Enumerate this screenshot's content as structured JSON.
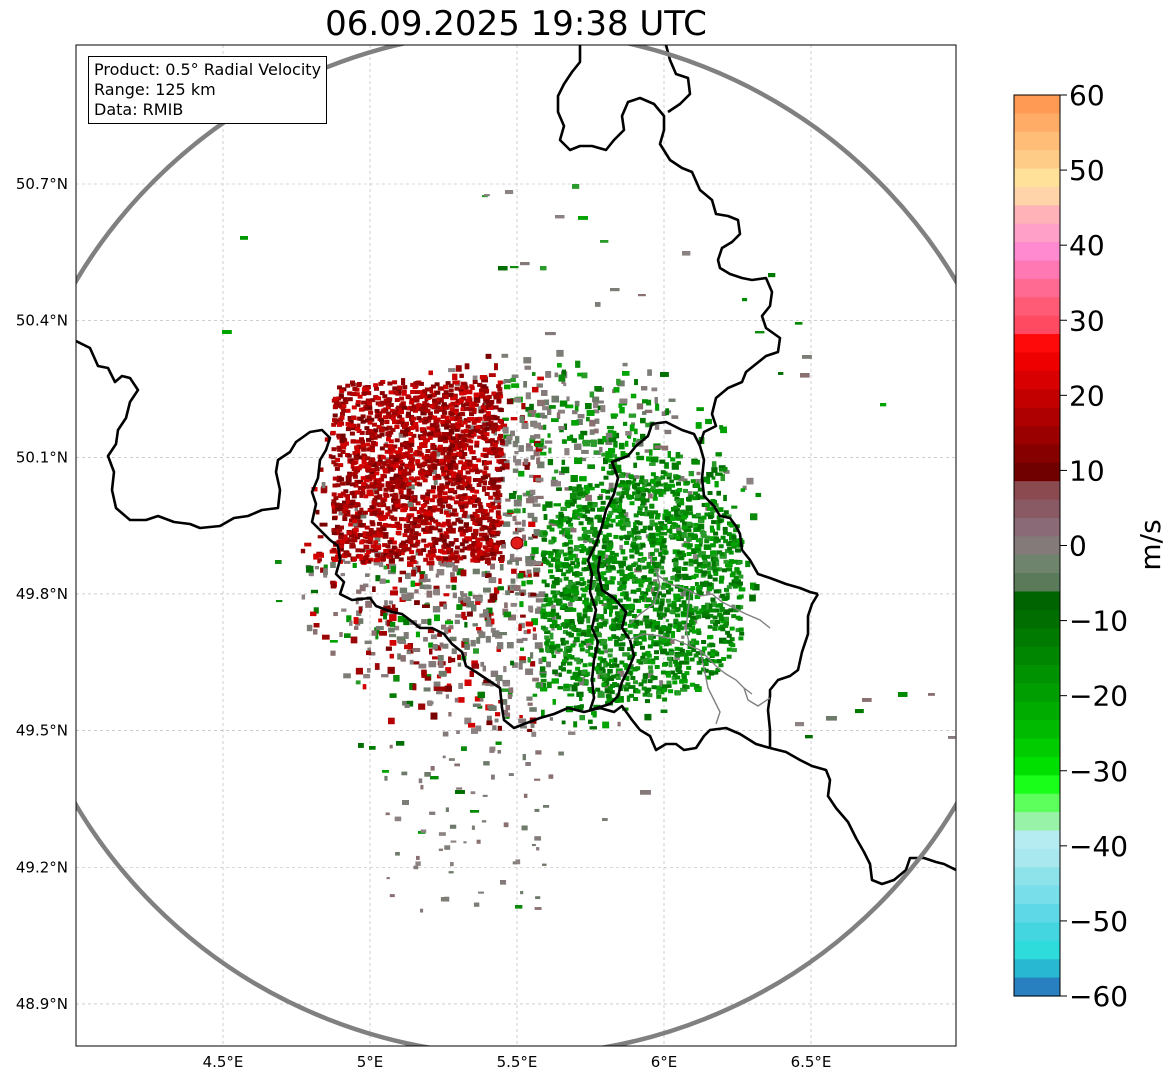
{
  "title": "06.09.2025 19:38 UTC",
  "info": {
    "product": "Product: 0.5° Radial Velocity",
    "range": "Range: 125 km",
    "data_source": "Data: RMIB"
  },
  "map": {
    "lon_ticks": [
      {
        "value": 4.5,
        "label": "4.5°E"
      },
      {
        "value": 5.0,
        "label": "5°E"
      },
      {
        "value": 5.5,
        "label": "5.5°E"
      },
      {
        "value": 6.0,
        "label": "6°E"
      },
      {
        "value": 6.5,
        "label": "6.5°E"
      }
    ],
    "lat_ticks": [
      {
        "value": 50.7,
        "label": "50.7°N"
      },
      {
        "value": 50.4,
        "label": "50.4°N"
      },
      {
        "value": 50.1,
        "label": "50.1°N"
      },
      {
        "value": 49.8,
        "label": "49.8°N"
      },
      {
        "value": 49.5,
        "label": "49.5°N"
      },
      {
        "value": 49.2,
        "label": "49.2°N"
      },
      {
        "value": 48.9,
        "label": "48.9°N"
      }
    ],
    "radar_site": {
      "lon": 5.505,
      "lat": 49.914
    },
    "range_km": 125
  },
  "colorbar": {
    "unit": "m/s",
    "min": -60,
    "max": 60,
    "tick_labels": [
      "60",
      "50",
      "40",
      "30",
      "20",
      "10",
      "0",
      "−10",
      "−20",
      "−30",
      "−40",
      "−50",
      "−60"
    ],
    "colors": [
      "#ff9a55",
      "#ffac66",
      "#ffbd78",
      "#ffcc88",
      "#ffe19a",
      "#ffd4a8",
      "#ffb2b8",
      "#ffa0c8",
      "#ff8ad0",
      "#ff78b4",
      "#ff6a92",
      "#ff5a76",
      "#ff4a62",
      "#ff0a0a",
      "#ee0000",
      "#d80000",
      "#c20000",
      "#ae0000",
      "#9a0000",
      "#860000",
      "#700000",
      "#8a4a50",
      "#8a5a64",
      "#8a6a76",
      "#847a7a",
      "#6e846c",
      "#5a7a5a",
      "#006400",
      "#006e00",
      "#007a00",
      "#008600",
      "#009200",
      "#009e00",
      "#00ac00",
      "#00ba00",
      "#00cc00",
      "#00e000",
      "#1aff1a",
      "#5cff5c",
      "#98f2a8",
      "#b4ecf2",
      "#a8e8ee",
      "#8ee2ea",
      "#78deea",
      "#5ed8e6",
      "#44d6e0",
      "#2edcdc",
      "#28b8d2",
      "#2880c0"
    ]
  },
  "colors": {
    "border": "#000000",
    "range_ring": "#808080",
    "radar_marker": "#e21a1a"
  }
}
